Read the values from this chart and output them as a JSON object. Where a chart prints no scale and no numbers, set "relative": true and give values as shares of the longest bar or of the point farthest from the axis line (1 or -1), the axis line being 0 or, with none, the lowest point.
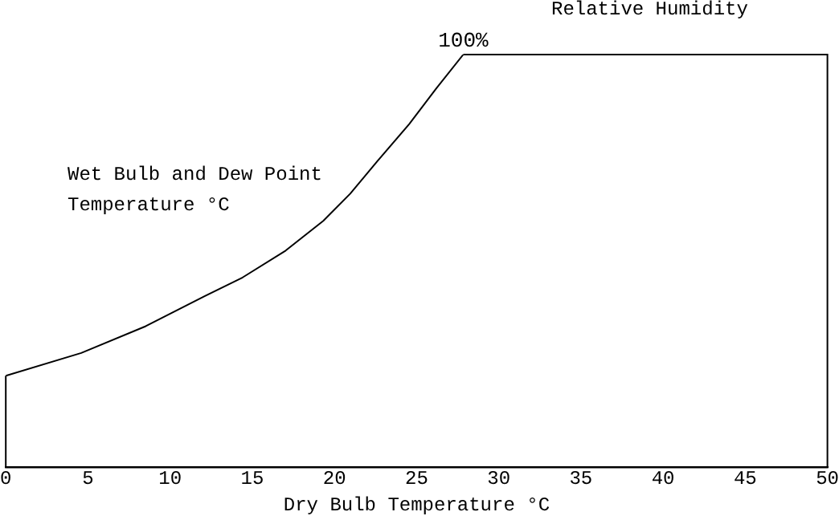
{
  "chart_data": {
    "type": "line",
    "title": "Relative Humidity",
    "xlabel": "Dry Bulb Temperature °C",
    "relative": true,
    "xlim": [
      0,
      50
    ],
    "xticks": [
      0,
      5,
      10,
      15,
      20,
      25,
      30,
      35,
      40,
      45,
      50
    ],
    "grid": false,
    "legend": false,
    "marker": "none",
    "line_style": "solid",
    "series": [
      {
        "color": "#000000",
        "x": [
          0,
          4.59,
          8.52,
          12.12,
          14.41,
          17.03,
          19.32,
          20.96,
          22.6,
          24.56,
          26.2,
          27.84
        ],
        "values": [
          0.222,
          0.277,
          0.342,
          0.415,
          0.46,
          0.525,
          0.597,
          0.663,
          0.741,
          0.832,
          0.918,
          1
        ]
      }
    ],
    "annotations": [
      {
        "text": "100%",
        "x": 27.84,
        "y": 1
      },
      "Wet Bulb and Dew Point Temperature °C"
    ]
  }
}
